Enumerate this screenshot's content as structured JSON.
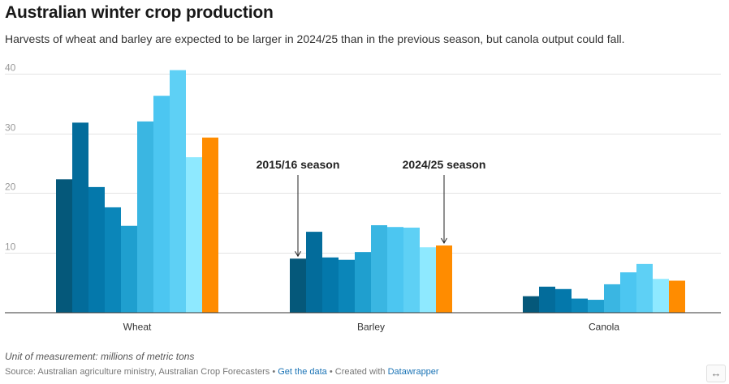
{
  "header": {
    "title": "Australian winter crop production",
    "subtitle": "Harvests of wheat and barley are expected to be larger in 2024/25 than in the previous season, but canola output could fall."
  },
  "footer": {
    "notes": "Unit of measurement: millions of metric tons",
    "source_prefix": "Source: Australian agriculture ministry, Australian Crop Forecasters",
    "sep1": "•",
    "get_data_label": "Get the data",
    "sep2": "•",
    "created_with": "Created with",
    "datawrapper_label": "Datawrapper",
    "expand_icon": "↔"
  },
  "chart_data": {
    "type": "bar",
    "categories": [
      "Wheat",
      "Barley",
      "Canola"
    ],
    "ylim": [
      0,
      40
    ],
    "yticks": [
      10,
      20,
      30,
      40
    ],
    "grid": true,
    "xlabel": "",
    "ylabel": "",
    "series_colors": [
      "#05587a",
      "#036c9b",
      "#0478ab",
      "#0b86b9",
      "#1f9fcf",
      "#3ab6e2",
      "#4cc6f1",
      "#5ed0f5",
      "#8ee9ff",
      "#ff8c00"
    ],
    "series": [
      {
        "values": [
          22.3,
          9.0,
          2.7
        ]
      },
      {
        "values": [
          31.8,
          13.5,
          4.3
        ]
      },
      {
        "values": [
          21.0,
          9.2,
          3.9
        ]
      },
      {
        "values": [
          17.6,
          8.8,
          2.3
        ]
      },
      {
        "values": [
          14.5,
          10.1,
          2.1
        ]
      },
      {
        "values": [
          32.0,
          14.6,
          4.7
        ]
      },
      {
        "values": [
          36.3,
          14.3,
          6.7
        ]
      },
      {
        "values": [
          40.6,
          14.2,
          8.1
        ]
      },
      {
        "values": [
          26.0,
          10.9,
          5.6
        ]
      },
      {
        "values": [
          29.3,
          11.2,
          5.3
        ]
      }
    ],
    "annotations": [
      {
        "text": "2015/16 season",
        "category": "Barley",
        "series_index": 0
      },
      {
        "text": "2024/25 season",
        "category": "Barley",
        "series_index": 9
      }
    ]
  }
}
